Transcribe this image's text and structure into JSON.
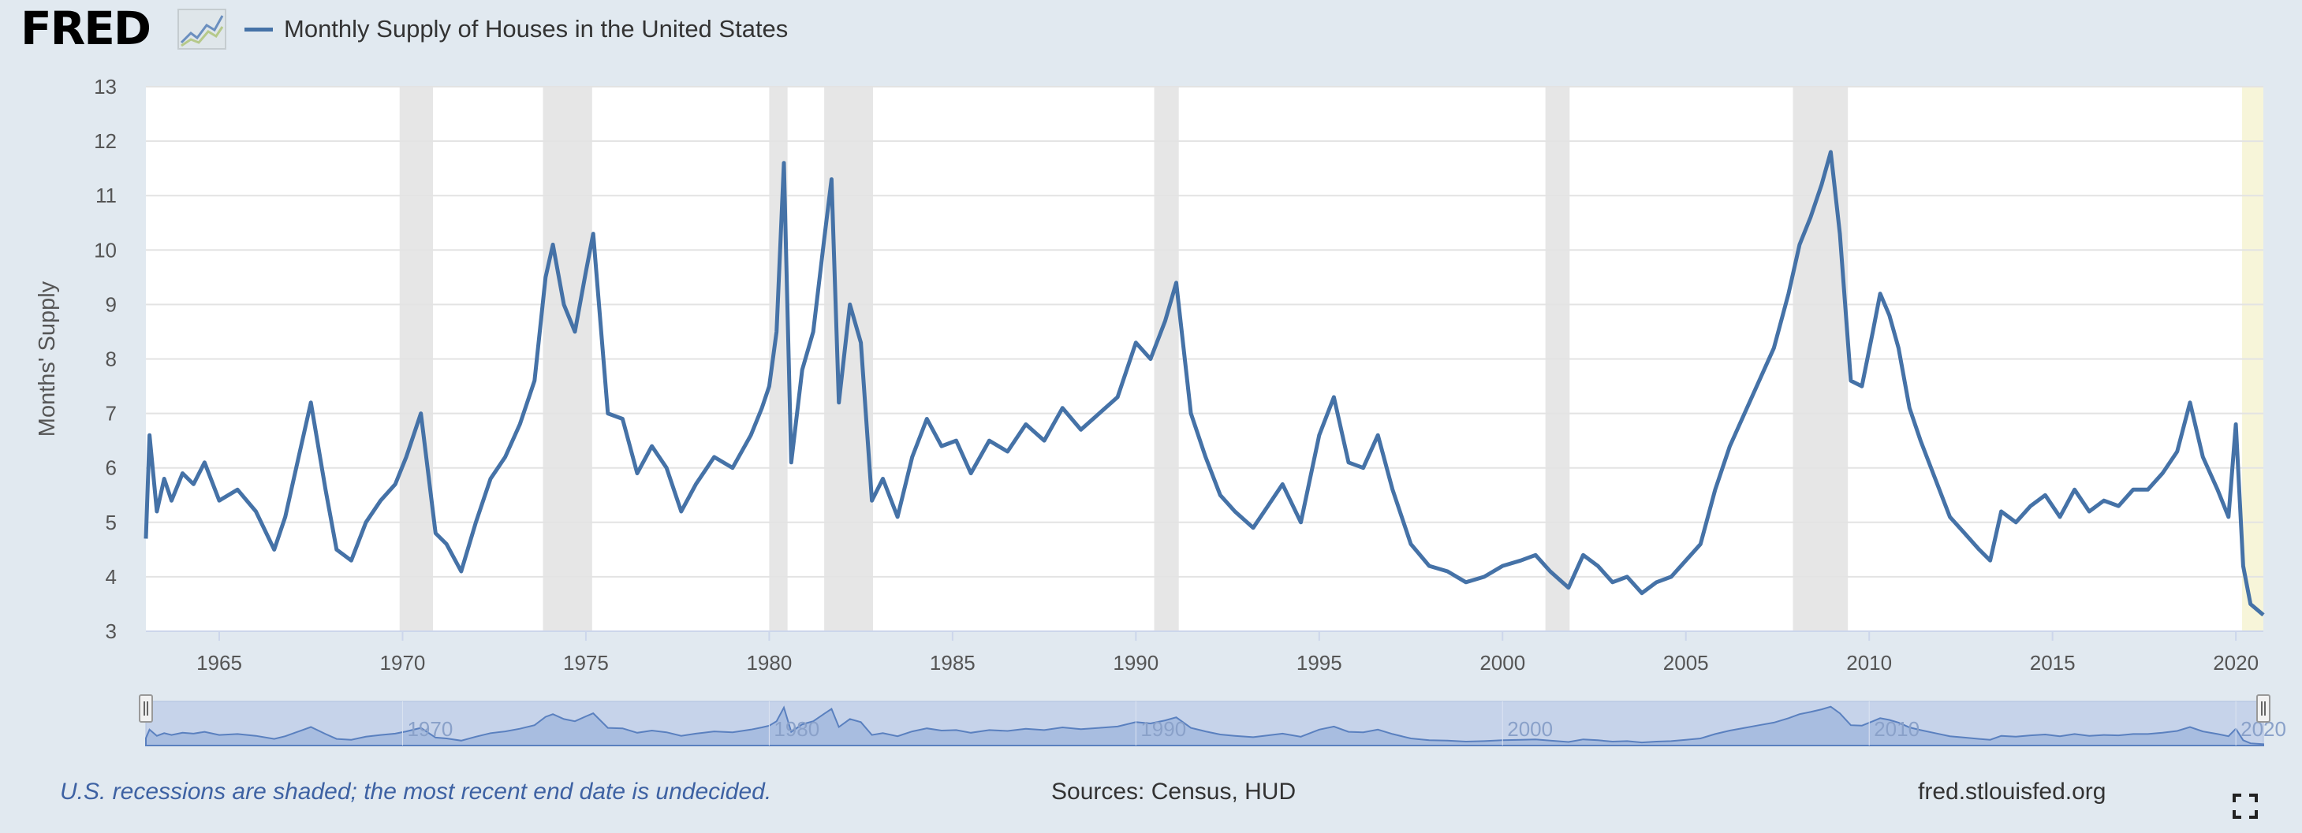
{
  "header": {
    "logo_text": "FRED",
    "logo_icon": "chart-line-icon",
    "legend_label": "Monthly Supply of Houses in the United States",
    "legend_color": "#4572a7"
  },
  "footer": {
    "note": "U.S. recessions are shaded; the most recent end date is undecided.",
    "sources": "Sources: Census, HUD",
    "site": "fred.stlouisfed.org",
    "fullscreen_icon": "fullscreen-icon"
  },
  "colors": {
    "background": "#e1e9f0",
    "plot_background": "#ffffff",
    "series": "#4572a7",
    "recession": "#e6e6e6",
    "current_recession": "#f7f5d9",
    "navigator_fill": "#a8bde0"
  },
  "chart_data": {
    "type": "line",
    "title": "",
    "xlabel": "",
    "ylabel": "Months' Supply",
    "xlim": [
      1963.0,
      2020.75
    ],
    "ylim": [
      3,
      13
    ],
    "grid": true,
    "yticks": [
      "3",
      "4",
      "5",
      "6",
      "7",
      "8",
      "9",
      "10",
      "11",
      "12",
      "13"
    ],
    "xticks": [
      "1965",
      "1970",
      "1975",
      "1980",
      "1985",
      "1990",
      "1995",
      "2000",
      "2005",
      "2010",
      "2015",
      "2020"
    ],
    "navigator_labels": [
      "1970",
      "1980",
      "1990",
      "2000",
      "2010",
      "2020"
    ],
    "recessions": [
      [
        1969.92,
        1970.83
      ],
      [
        1973.83,
        1975.17
      ],
      [
        1980.0,
        1980.5
      ],
      [
        1981.5,
        1982.83
      ],
      [
        1990.5,
        1991.17
      ],
      [
        2001.17,
        2001.83
      ],
      [
        2007.92,
        2009.42
      ]
    ],
    "current_recession": [
      2020.17,
      2020.75
    ],
    "series": [
      {
        "name": "Monthly Supply of Houses in the United States",
        "color": "#4572a7",
        "x": [
          1963.0,
          1963.1,
          1963.3,
          1963.5,
          1963.7,
          1964.0,
          1964.3,
          1964.6,
          1965.0,
          1965.5,
          1966.0,
          1966.5,
          1966.8,
          1967.1,
          1967.5,
          1967.9,
          1968.2,
          1968.6,
          1969.0,
          1969.4,
          1969.8,
          1970.1,
          1970.5,
          1970.9,
          1971.2,
          1971.6,
          1972.0,
          1972.4,
          1972.8,
          1973.2,
          1973.6,
          1973.9,
          1974.1,
          1974.4,
          1974.7,
          1975.0,
          1975.2,
          1975.6,
          1976.0,
          1976.4,
          1976.8,
          1977.2,
          1977.6,
          1978.0,
          1978.5,
          1979.0,
          1979.5,
          1979.8,
          1980.0,
          1980.2,
          1980.4,
          1980.6,
          1980.9,
          1981.2,
          1981.5,
          1981.7,
          1981.9,
          1982.2,
          1982.5,
          1982.8,
          1983.1,
          1983.5,
          1983.9,
          1984.3,
          1984.7,
          1985.1,
          1985.5,
          1986.0,
          1986.5,
          1987.0,
          1987.5,
          1988.0,
          1988.5,
          1989.0,
          1989.5,
          1990.0,
          1990.4,
          1990.8,
          1991.1,
          1991.5,
          1991.9,
          1992.3,
          1992.7,
          1993.2,
          1993.6,
          1994.0,
          1994.5,
          1995.0,
          1995.4,
          1995.8,
          1996.2,
          1996.6,
          1997.0,
          1997.5,
          1998.0,
          1998.5,
          1999.0,
          1999.5,
          2000.0,
          2000.5,
          2000.9,
          2001.3,
          2001.8,
          2002.2,
          2002.6,
          2003.0,
          2003.4,
          2003.8,
          2004.2,
          2004.6,
          2005.0,
          2005.4,
          2005.8,
          2006.2,
          2006.6,
          2007.0,
          2007.4,
          2007.8,
          2008.1,
          2008.4,
          2008.7,
          2008.95,
          2009.2,
          2009.5,
          2009.8,
          2010.1,
          2010.3,
          2010.55,
          2010.8,
          2011.1,
          2011.4,
          2011.8,
          2012.2,
          2012.6,
          2013.0,
          2013.3,
          2013.6,
          2014.0,
          2014.4,
          2014.8,
          2015.2,
          2015.6,
          2016.0,
          2016.4,
          2016.8,
          2017.2,
          2017.6,
          2018.0,
          2018.4,
          2018.75,
          2019.1,
          2019.5,
          2019.8,
          2020.0,
          2020.2,
          2020.4,
          2020.75
        ],
        "y": [
          4.7,
          6.6,
          5.2,
          5.8,
          5.4,
          5.9,
          5.7,
          6.1,
          5.4,
          5.6,
          5.2,
          4.5,
          5.1,
          6.0,
          7.2,
          5.6,
          4.5,
          4.3,
          5.0,
          5.4,
          5.7,
          6.2,
          7.0,
          4.8,
          4.6,
          4.1,
          5.0,
          5.8,
          6.2,
          6.8,
          7.6,
          9.5,
          10.1,
          9.0,
          8.5,
          9.6,
          10.3,
          7.0,
          6.9,
          5.9,
          6.4,
          6.0,
          5.2,
          5.7,
          6.2,
          6.0,
          6.6,
          7.1,
          7.5,
          8.5,
          11.6,
          6.1,
          7.8,
          8.5,
          10.2,
          11.3,
          7.2,
          9.0,
          8.3,
          5.4,
          5.8,
          5.1,
          6.2,
          6.9,
          6.4,
          6.5,
          5.9,
          6.5,
          6.3,
          6.8,
          6.5,
          7.1,
          6.7,
          7.0,
          7.3,
          8.3,
          8.0,
          8.7,
          9.4,
          7.0,
          6.2,
          5.5,
          5.2,
          4.9,
          5.3,
          5.7,
          5.0,
          6.6,
          7.3,
          6.1,
          6.0,
          6.6,
          5.6,
          4.6,
          4.2,
          4.1,
          3.9,
          4.0,
          4.2,
          4.3,
          4.4,
          4.1,
          3.8,
          4.4,
          4.2,
          3.9,
          4.0,
          3.7,
          3.9,
          4.0,
          4.3,
          4.6,
          5.6,
          6.4,
          7.0,
          7.6,
          8.2,
          9.2,
          10.1,
          10.6,
          11.2,
          11.8,
          10.3,
          7.6,
          7.5,
          8.5,
          9.2,
          8.8,
          8.2,
          7.1,
          6.5,
          5.8,
          5.1,
          4.8,
          4.5,
          4.3,
          5.2,
          5.0,
          5.3,
          5.5,
          5.1,
          5.6,
          5.2,
          5.4,
          5.3,
          5.6,
          5.6,
          5.9,
          6.3,
          7.2,
          6.2,
          5.6,
          5.1,
          6.8,
          4.2,
          3.5,
          3.3
        ]
      }
    ]
  }
}
